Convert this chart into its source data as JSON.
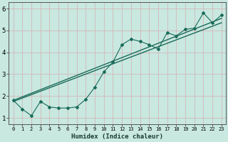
{
  "xlabel": "Humidex (Indice chaleur)",
  "bg_color": "#c8e8e0",
  "grid_color": "#b8d8d0",
  "line_color": "#1a6b5a",
  "xlim": [
    -0.5,
    23.5
  ],
  "ylim": [
    0.7,
    6.3
  ],
  "yticks": [
    1,
    2,
    3,
    4,
    5,
    6
  ],
  "xtick_labels": [
    "0",
    "1",
    "2",
    "3",
    "4",
    "5",
    "6",
    "7",
    "8",
    "9",
    "10",
    "11",
    "12",
    "13",
    "14",
    "15",
    "16",
    "17",
    "18",
    "19",
    "20",
    "21",
    "22",
    "23"
  ],
  "series": [
    [
      0,
      1.8
    ],
    [
      1,
      1.4
    ],
    [
      2,
      1.1
    ],
    [
      3,
      1.75
    ],
    [
      4,
      1.5
    ],
    [
      5,
      1.45
    ],
    [
      6,
      1.45
    ],
    [
      7,
      1.5
    ],
    [
      8,
      1.85
    ],
    [
      9,
      2.4
    ],
    [
      10,
      3.1
    ],
    [
      11,
      3.55
    ],
    [
      12,
      4.35
    ],
    [
      13,
      4.6
    ],
    [
      14,
      4.5
    ],
    [
      15,
      4.35
    ],
    [
      16,
      4.15
    ],
    [
      17,
      4.9
    ],
    [
      18,
      4.75
    ],
    [
      19,
      5.05
    ],
    [
      20,
      5.1
    ],
    [
      21,
      5.8
    ],
    [
      22,
      5.35
    ],
    [
      23,
      5.7
    ]
  ],
  "line2": [
    [
      0,
      1.8
    ],
    [
      23,
      5.55
    ]
  ],
  "line3": [
    [
      0,
      1.75
    ],
    [
      23,
      5.35
    ]
  ]
}
